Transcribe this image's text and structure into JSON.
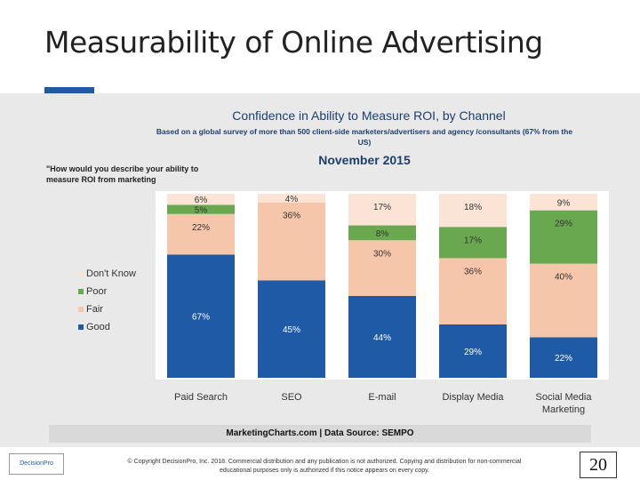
{
  "slide": {
    "title": "Measurability of Online Advertising",
    "question": "\"How would you describe your ability to measure ROI from marketing",
    "source": "MarketingCharts.com | Data Source: SEMPO",
    "logo_text": "DecisionPro",
    "copyright": "© Copyright DecisionPro, Inc. 2018. Commercial distribution and any publication is not authorized. Copying and distribution for non-commercial educational purposes only is authorized if this notice appears on every copy.",
    "page_number": "20"
  },
  "chart_data": {
    "type": "bar",
    "stacked": true,
    "title": "Confidence in Ability to Measure ROI, by Channel",
    "subtitle": "Based on a global survey of more than 500 client-side marketers/advertisers and agency /consultants (67% from the US)",
    "date_label": "November 2015",
    "categories": [
      "Paid Search",
      "SEO",
      "E-mail",
      "Display Media",
      "Social Media Marketing"
    ],
    "series": [
      {
        "name": "Good",
        "color": "#1f5aa6",
        "values": [
          67,
          45,
          44,
          29,
          22
        ],
        "labels": [
          "67%",
          "45%",
          "44%",
          "29%",
          "22%"
        ]
      },
      {
        "name": "Fair",
        "color": "#f6c6aa",
        "values": [
          22,
          36,
          30,
          36,
          40
        ],
        "labels": [
          "22%",
          "36%",
          "30%",
          "36%",
          "40%"
        ]
      },
      {
        "name": "Poor",
        "color": "#6aa84f",
        "values": [
          5,
          0,
          8,
          17,
          29
        ],
        "labels": [
          "5%",
          "",
          "8%",
          "17%",
          "29%"
        ]
      },
      {
        "name": "Don't Know",
        "color": "#fbe4d5",
        "values": [
          6,
          4,
          17,
          18,
          9
        ],
        "labels": [
          "6%",
          "4%",
          "17%",
          "18%",
          "9%"
        ]
      }
    ],
    "ylim": [
      0,
      100
    ],
    "legend_position": "left"
  }
}
